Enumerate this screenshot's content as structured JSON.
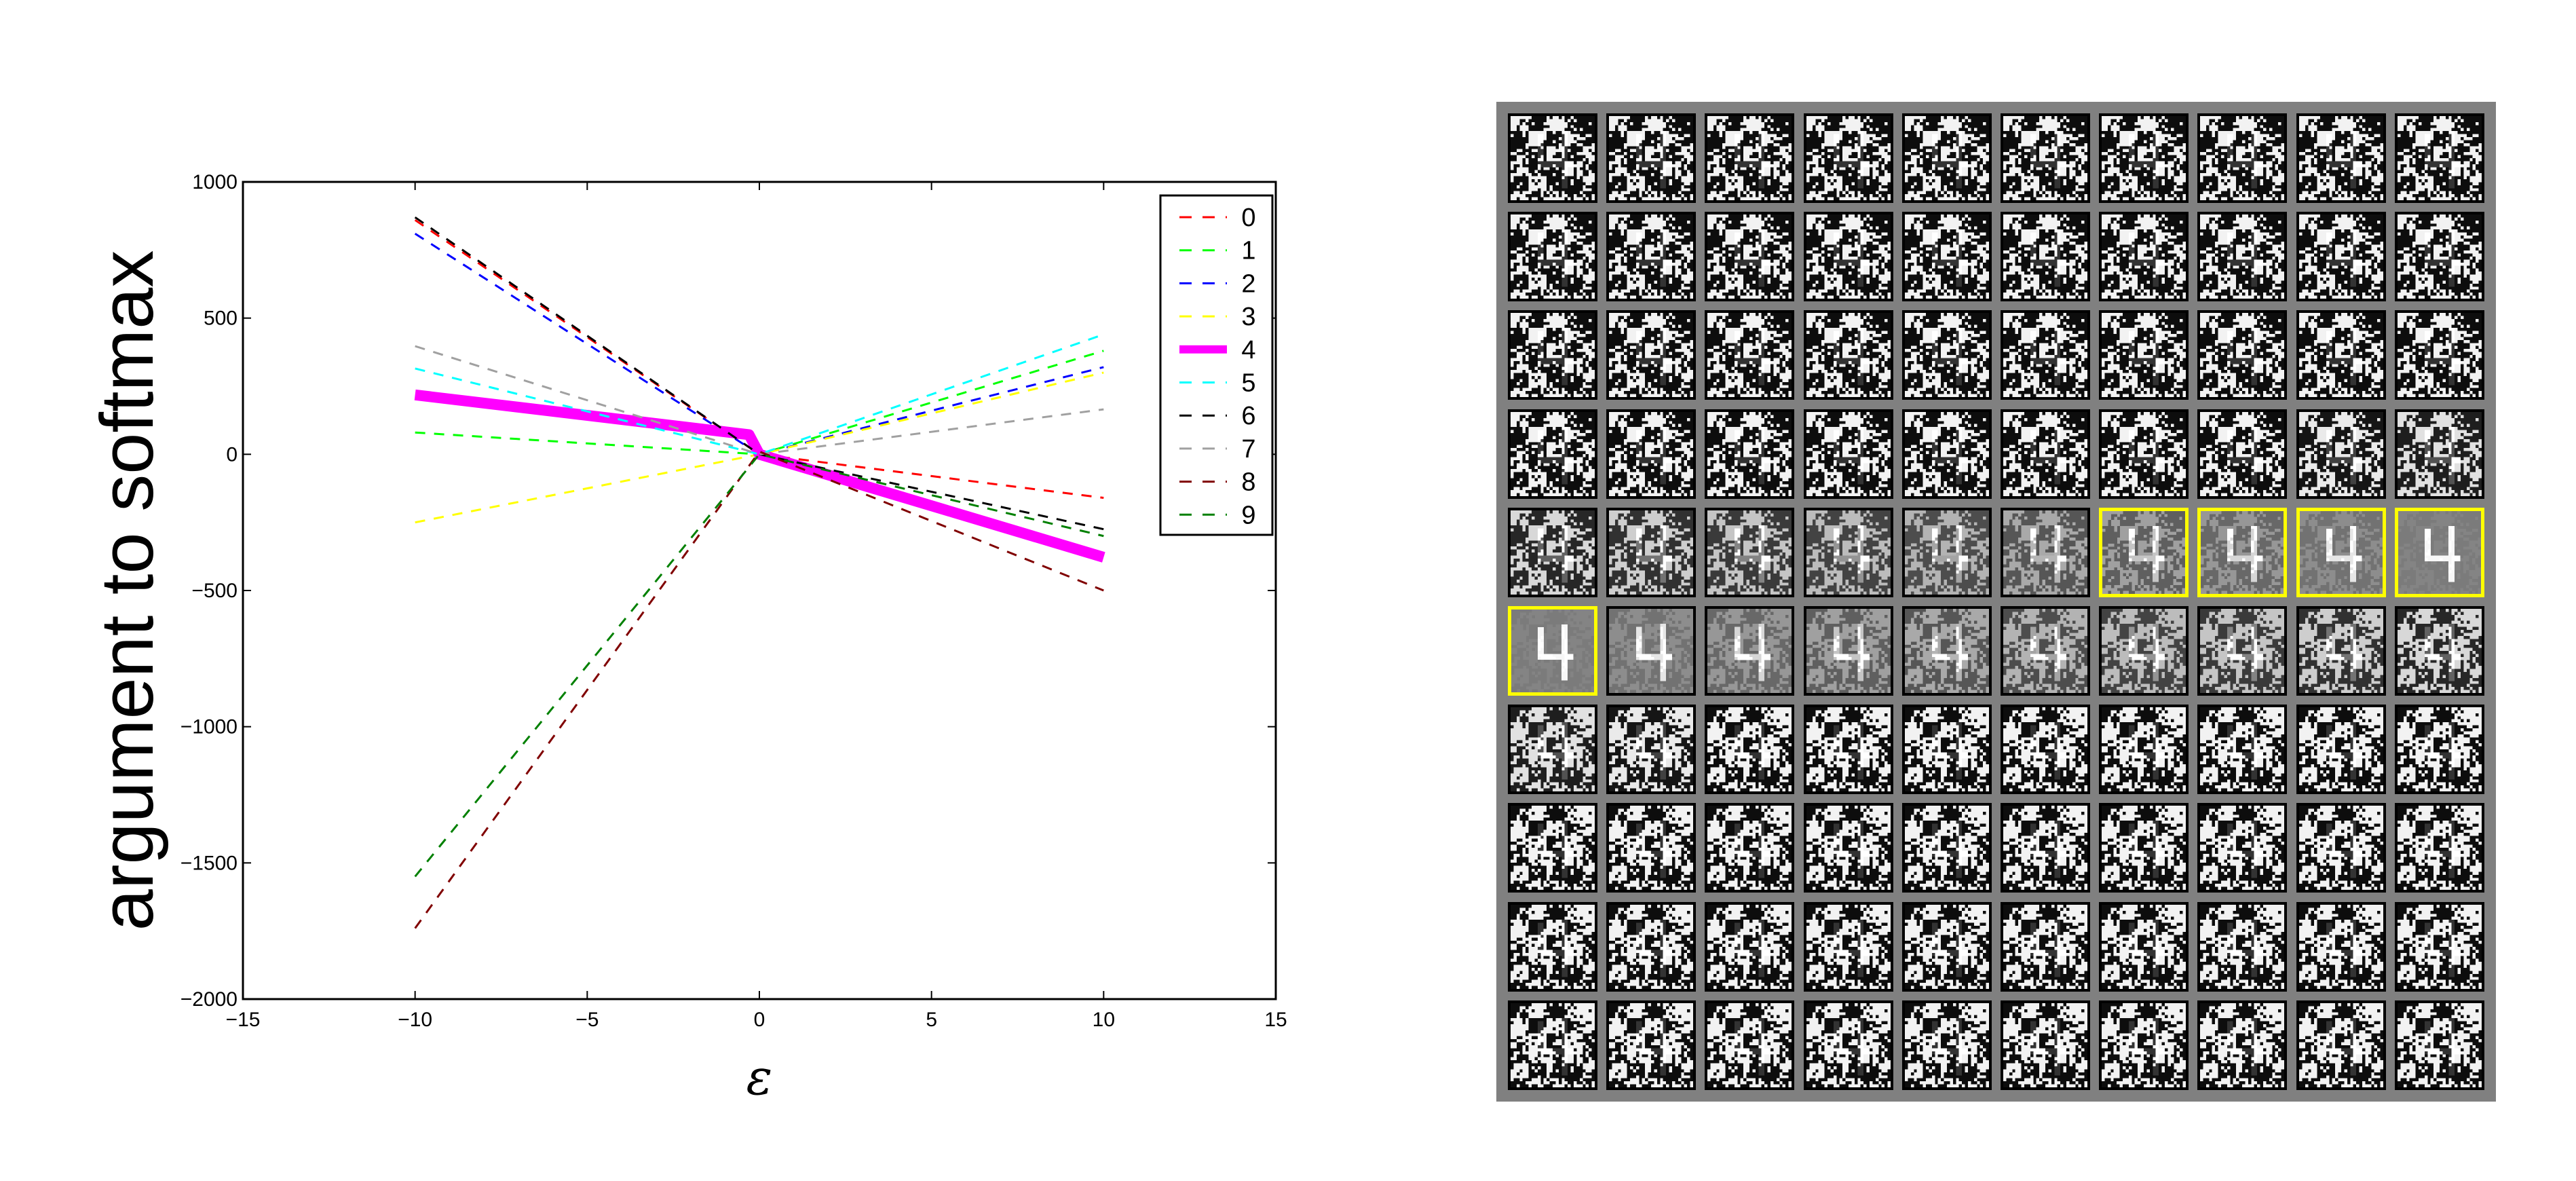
{
  "chart_data": [
    {
      "type": "line",
      "title": "",
      "xlabel": "ε",
      "ylabel": "argument to softmax",
      "xlim": [
        -15,
        15
      ],
      "ylim": [
        -2000,
        1000
      ],
      "xticks": [
        -15,
        -10,
        -5,
        0,
        5,
        10,
        15
      ],
      "xtick_labels": [
        "−15",
        "−10",
        "−5",
        "0",
        "5",
        "10",
        "15"
      ],
      "yticks": [
        1000,
        500,
        0,
        -500,
        -1000,
        -1500,
        -2000
      ],
      "ytick_labels": [
        "1000",
        "500",
        "0",
        "−500",
        "−1000",
        "−1500",
        "−2000"
      ],
      "grid": false,
      "legend_position": "upper right",
      "series": [
        {
          "name": "0",
          "color": "#ff0000",
          "style": "dashed",
          "width": 3,
          "x": [
            -10,
            0,
            10
          ],
          "y": [
            860,
            0,
            -160
          ]
        },
        {
          "name": "1",
          "color": "#00ff00",
          "style": "dashed",
          "width": 3,
          "x": [
            -10,
            0,
            10
          ],
          "y": [
            80,
            0,
            380
          ]
        },
        {
          "name": "2",
          "color": "#0000ff",
          "style": "dashed",
          "width": 3,
          "x": [
            -10,
            0,
            10
          ],
          "y": [
            810,
            0,
            320
          ]
        },
        {
          "name": "3",
          "color": "#ffff00",
          "style": "dashed",
          "width": 3,
          "x": [
            -10,
            0,
            10
          ],
          "y": [
            -250,
            0,
            300
          ]
        },
        {
          "name": "4",
          "color": "#ff00ff",
          "style": "solid",
          "width": 16,
          "x": [
            -10,
            -0.3,
            0,
            10
          ],
          "y": [
            218,
            72,
            0,
            -378
          ]
        },
        {
          "name": "5",
          "color": "#00ffff",
          "style": "dashed",
          "width": 3,
          "x": [
            -10,
            0,
            10
          ],
          "y": [
            315,
            0,
            440
          ]
        },
        {
          "name": "6",
          "color": "#000000",
          "style": "dashed",
          "width": 3,
          "x": [
            -10,
            0,
            10
          ],
          "y": [
            870,
            0,
            -275
          ]
        },
        {
          "name": "7",
          "color": "#a0a0a0",
          "style": "dashed",
          "width": 3,
          "x": [
            -10,
            0,
            10
          ],
          "y": [
            397,
            0,
            165
          ]
        },
        {
          "name": "8",
          "color": "#800000",
          "style": "dashed",
          "width": 3,
          "x": [
            -10,
            0,
            10
          ],
          "y": [
            -1740,
            10,
            -500
          ]
        },
        {
          "name": "9",
          "color": "#008000",
          "style": "dashed",
          "width": 3,
          "x": [
            -10,
            0,
            10
          ],
          "y": [
            -1550,
            0,
            -300
          ]
        }
      ]
    },
    {
      "type": "image_grid",
      "rows": 10,
      "cols": 10,
      "description": "Adversarial images along ε from −10 (top-left) to +10 (bottom-right); tiles classified as 4 outlined in yellow",
      "highlight_color": "#ffff00",
      "highlighted_tiles": [
        [
          4,
          6
        ],
        [
          4,
          7
        ],
        [
          4,
          8
        ],
        [
          4,
          9
        ],
        [
          5,
          0
        ]
      ],
      "clean_tile": [
        5,
        0
      ],
      "digit": "4"
    }
  ],
  "labels": {
    "ylabel": "argument to softmax",
    "xlabel": "ε"
  }
}
